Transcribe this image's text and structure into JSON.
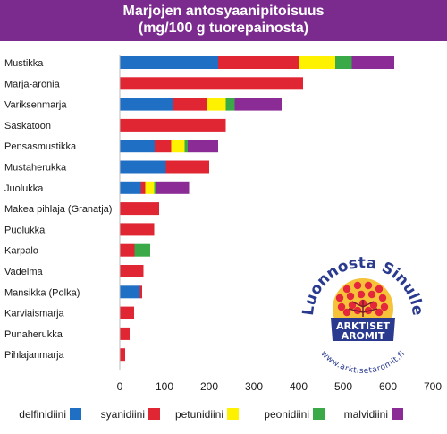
{
  "chart_data": {
    "type": "bar",
    "orientation": "horizontal",
    "stacked": true,
    "title": "Marjojen antosyaanipitoisuus",
    "subtitle": "(mg/100 g tuorepainosta)",
    "categories": [
      "Mustikka",
      "Marja-aronia",
      "Variksenmarja",
      "Saskatoon",
      "Pensasmustikka",
      "Mustaherukka",
      "Juolukka",
      "Makea pihlaja (Granatja)",
      "Puolukka",
      "Karpalo",
      "Vadelma",
      "Mansikka (Polka)",
      "Karviaismarja",
      "Punaherukka",
      "Pihlajanmarja"
    ],
    "series": [
      {
        "name": "delfinidiini",
        "color": "#1f6fc4",
        "values": [
          220,
          0,
          120,
          0,
          78,
          103,
          47,
          0,
          0,
          0,
          0,
          45,
          0,
          0,
          0
        ]
      },
      {
        "name": "syanidiini",
        "color": "#e02533",
        "values": [
          180,
          410,
          75,
          237,
          37,
          97,
          10,
          88,
          77,
          33,
          53,
          5,
          32,
          22,
          12
        ]
      },
      {
        "name": "petunidiini",
        "color": "#fff200",
        "values": [
          82,
          0,
          42,
          0,
          30,
          0,
          20,
          0,
          0,
          0,
          0,
          0,
          0,
          0,
          0
        ]
      },
      {
        "name": "peonidiini",
        "color": "#3aaa48",
        "values": [
          37,
          0,
          20,
          0,
          7,
          0,
          5,
          0,
          0,
          35,
          0,
          0,
          0,
          0,
          0
        ]
      },
      {
        "name": "malvidiini",
        "color": "#8b2c96",
        "values": [
          95,
          0,
          105,
          0,
          68,
          0,
          73,
          0,
          0,
          0,
          0,
          0,
          0,
          0,
          0
        ]
      }
    ],
    "xlim": [
      0,
      700
    ],
    "xticks": [
      0,
      100,
      200,
      300,
      400,
      500,
      600,
      700
    ],
    "legend_position": "bottom",
    "grid": false
  },
  "logo": {
    "arc_text": "Luonnosta Sinulle",
    "line1": "ARKTISET",
    "line2": "AROMIT",
    "url": "www.arktisetaromit.fi",
    "ring_color": "#2a3b8f",
    "band_color": "#2a3b8f",
    "sun_color": "#f5c23a",
    "berry_color": "#e4273a"
  }
}
